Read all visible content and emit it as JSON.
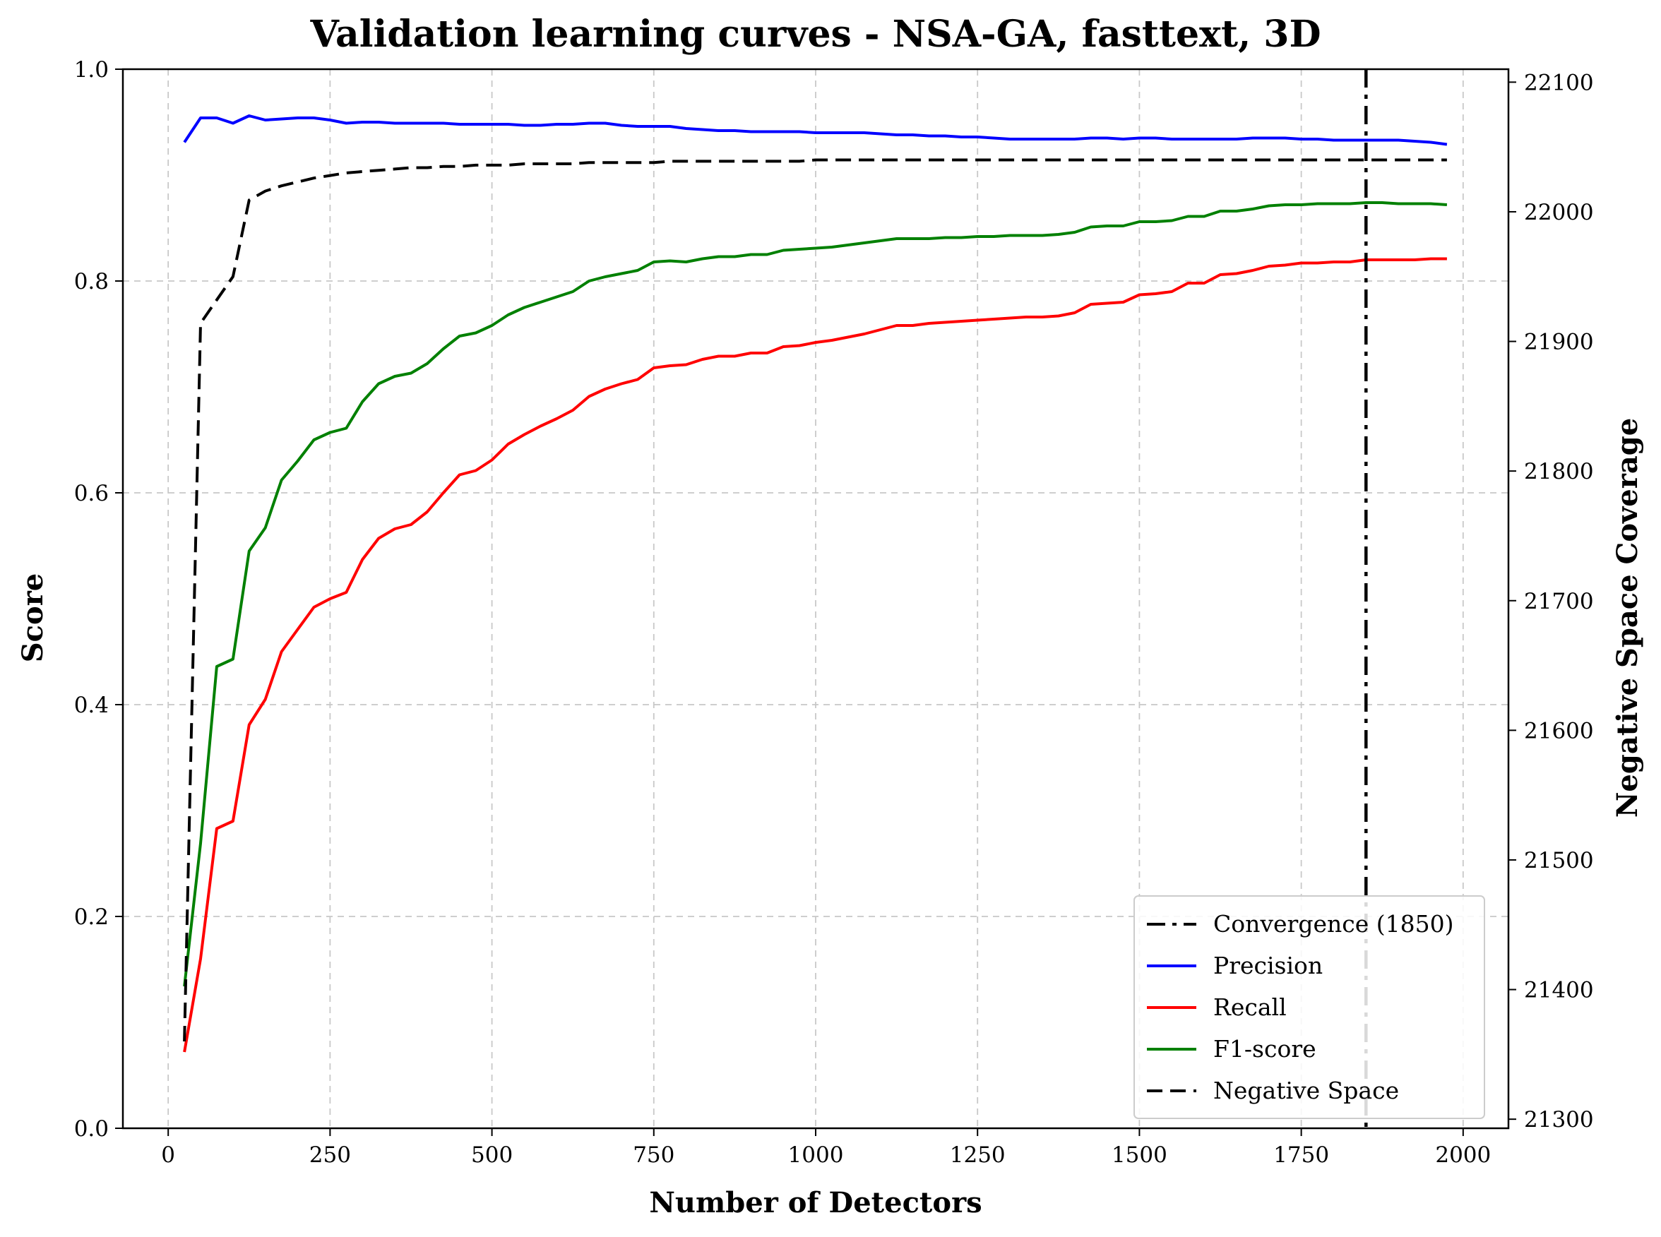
{
  "chart_data": {
    "type": "line",
    "title": "Validation learning curves - NSA-GA, fasttext, 3D",
    "xlabel": "Number of Detectors",
    "ylabel": "Score",
    "y2label": "Negative Space Coverage",
    "xlim": [
      -70,
      2070
    ],
    "ylim": [
      0.0,
      1.0
    ],
    "y2lim": [
      21293,
      22110
    ],
    "xticks": [
      0,
      250,
      500,
      750,
      1000,
      1250,
      1500,
      1750,
      2000
    ],
    "yticks": [
      0.0,
      0.2,
      0.4,
      0.6,
      0.8,
      1.0
    ],
    "y2ticks": [
      21300,
      21400,
      21500,
      21600,
      21700,
      21800,
      21900,
      22000,
      22100
    ],
    "grid": true,
    "legend_position": "lower-right",
    "convergence": {
      "x": 1850,
      "label": "Convergence (1850)",
      "color": "#000000"
    },
    "x": [
      25,
      50,
      75,
      100,
      125,
      150,
      175,
      200,
      225,
      250,
      275,
      300,
      325,
      350,
      375,
      400,
      425,
      450,
      475,
      500,
      525,
      550,
      575,
      600,
      625,
      650,
      675,
      700,
      725,
      750,
      775,
      800,
      825,
      850,
      875,
      900,
      925,
      950,
      975,
      1000,
      1025,
      1050,
      1075,
      1100,
      1125,
      1150,
      1175,
      1200,
      1225,
      1250,
      1275,
      1300,
      1325,
      1350,
      1375,
      1400,
      1425,
      1450,
      1475,
      1500,
      1525,
      1550,
      1575,
      1600,
      1625,
      1650,
      1675,
      1700,
      1725,
      1750,
      1775,
      1800,
      1825,
      1850,
      1875,
      1900,
      1925,
      1950,
      1975
    ],
    "series": [
      {
        "name": "Precision",
        "axis": "left",
        "color": "#0000ff",
        "dash": "solid",
        "values": [
          0.931,
          0.954,
          0.954,
          0.949,
          0.956,
          0.952,
          0.953,
          0.954,
          0.954,
          0.952,
          0.949,
          0.95,
          0.95,
          0.949,
          0.949,
          0.949,
          0.949,
          0.948,
          0.948,
          0.948,
          0.948,
          0.947,
          0.947,
          0.948,
          0.948,
          0.949,
          0.949,
          0.947,
          0.946,
          0.946,
          0.946,
          0.944,
          0.943,
          0.942,
          0.942,
          0.941,
          0.941,
          0.941,
          0.941,
          0.94,
          0.94,
          0.94,
          0.94,
          0.939,
          0.938,
          0.938,
          0.937,
          0.937,
          0.936,
          0.936,
          0.935,
          0.934,
          0.934,
          0.934,
          0.934,
          0.934,
          0.935,
          0.935,
          0.934,
          0.935,
          0.935,
          0.934,
          0.934,
          0.934,
          0.934,
          0.934,
          0.935,
          0.935,
          0.935,
          0.934,
          0.934,
          0.933,
          0.933,
          0.933,
          0.933,
          0.933,
          0.932,
          0.931,
          0.929
        ]
      },
      {
        "name": "Recall",
        "axis": "left",
        "color": "#ff0000",
        "dash": "solid",
        "values": [
          0.072,
          0.16,
          0.283,
          0.29,
          0.381,
          0.405,
          0.45,
          0.471,
          0.492,
          0.5,
          0.506,
          0.537,
          0.557,
          0.566,
          0.57,
          0.582,
          0.6,
          0.617,
          0.621,
          0.631,
          0.646,
          0.655,
          0.663,
          0.67,
          0.678,
          0.691,
          0.698,
          0.703,
          0.707,
          0.718,
          0.72,
          0.721,
          0.726,
          0.729,
          0.729,
          0.732,
          0.732,
          0.738,
          0.739,
          0.742,
          0.744,
          0.747,
          0.75,
          0.754,
          0.758,
          0.758,
          0.76,
          0.761,
          0.762,
          0.763,
          0.764,
          0.765,
          0.766,
          0.766,
          0.767,
          0.77,
          0.778,
          0.779,
          0.78,
          0.787,
          0.788,
          0.79,
          0.798,
          0.798,
          0.806,
          0.807,
          0.81,
          0.814,
          0.815,
          0.817,
          0.817,
          0.818,
          0.818,
          0.82,
          0.82,
          0.82,
          0.82,
          0.821,
          0.821
        ]
      },
      {
        "name": "F1-score",
        "axis": "left",
        "color": "#008000",
        "dash": "solid",
        "values": [
          0.134,
          0.269,
          0.436,
          0.443,
          0.545,
          0.567,
          0.612,
          0.63,
          0.65,
          0.657,
          0.661,
          0.686,
          0.703,
          0.71,
          0.713,
          0.722,
          0.736,
          0.748,
          0.751,
          0.758,
          0.768,
          0.775,
          0.78,
          0.785,
          0.79,
          0.8,
          0.804,
          0.807,
          0.81,
          0.818,
          0.819,
          0.818,
          0.821,
          0.823,
          0.823,
          0.825,
          0.825,
          0.829,
          0.83,
          0.831,
          0.832,
          0.834,
          0.836,
          0.838,
          0.84,
          0.84,
          0.84,
          0.841,
          0.841,
          0.842,
          0.842,
          0.843,
          0.843,
          0.843,
          0.844,
          0.846,
          0.851,
          0.852,
          0.852,
          0.856,
          0.856,
          0.857,
          0.861,
          0.861,
          0.866,
          0.866,
          0.868,
          0.871,
          0.872,
          0.872,
          0.873,
          0.873,
          0.873,
          0.874,
          0.874,
          0.873,
          0.873,
          0.873,
          0.872
        ]
      },
      {
        "name": "Negative Space",
        "axis": "right",
        "color": "#000000",
        "dash": "dashed",
        "values": [
          21360,
          21914,
          21932,
          21950,
          22009,
          22016,
          22020,
          22023,
          22026,
          22028,
          22030,
          22031,
          22032,
          22033,
          22034,
          22034,
          22035,
          22035,
          22036,
          22036,
          22036,
          22037,
          22037,
          22037,
          22037,
          22038,
          22038,
          22038,
          22038,
          22038,
          22039,
          22039,
          22039,
          22039,
          22039,
          22039,
          22039,
          22039,
          22039,
          22040,
          22040,
          22040,
          22040,
          22040,
          22040,
          22040,
          22040,
          22040,
          22040,
          22040,
          22040,
          22040,
          22040,
          22040,
          22040,
          22040,
          22040,
          22040,
          22040,
          22040,
          22040,
          22040,
          22040,
          22040,
          22040,
          22040,
          22040,
          22040,
          22040,
          22040,
          22040,
          22040,
          22040,
          22040,
          22040,
          22040,
          22040,
          22040,
          22040
        ]
      }
    ]
  }
}
